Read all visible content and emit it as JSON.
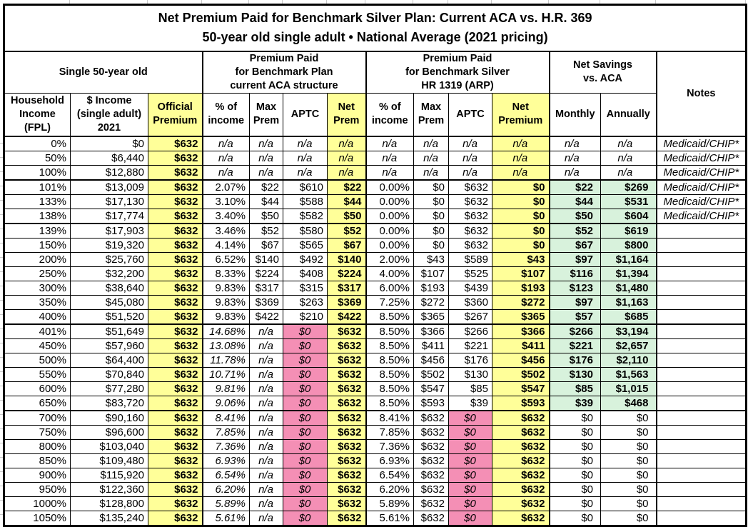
{
  "title": {
    "line1": "Net Premium Paid for Benchmark Silver Plan: Current ACA vs. H.R. 369",
    "line2": "50-year old single adult • National Average (2021 pricing)"
  },
  "groups": {
    "single": "Single 50-year old",
    "aca": "Premium Paid\nfor Benchmark Plan\ncurrent ACA structure",
    "arp": "Premium Paid\nfor Benchmark Silver\nHR 1319 (ARP)",
    "savings": "Net Savings\nvs. ACA",
    "notes": "Notes"
  },
  "columns": [
    "Household\nIncome\n(FPL)",
    "$ Income\n(single adult)\n2021",
    "Official\nPremium",
    "% of\nincome",
    "Max\nPrem",
    "APTC",
    "Net\nPrem",
    "% of\nincome",
    "Max\nPrem",
    "APTC",
    "Net\nPremium",
    "Monthly",
    "Annually"
  ],
  "colors": {
    "highlight_yellow": "#FFFF99",
    "highlight_pink": "#F48FB5",
    "highlight_green": "#D8F2DC"
  },
  "rows": [
    {
      "type": "na",
      "thick_top": false,
      "cells": [
        "0%",
        "$0",
        "$632",
        "n/a",
        "n/a",
        "n/a",
        "n/a",
        "n/a",
        "n/a",
        "n/a",
        "n/a",
        "n/a",
        "n/a",
        "Medicaid/CHIP*"
      ]
    },
    {
      "type": "na",
      "thick_top": false,
      "cells": [
        "50%",
        "$6,440",
        "$632",
        "n/a",
        "n/a",
        "n/a",
        "n/a",
        "n/a",
        "n/a",
        "n/a",
        "n/a",
        "n/a",
        "n/a",
        "Medicaid/CHIP*"
      ]
    },
    {
      "type": "na",
      "thick_top": false,
      "cells": [
        "100%",
        "$12,880",
        "$632",
        "n/a",
        "n/a",
        "n/a",
        "n/a",
        "n/a",
        "n/a",
        "n/a",
        "n/a",
        "n/a",
        "n/a",
        "Medicaid/CHIP*"
      ]
    },
    {
      "type": "subsidy",
      "thick_top": true,
      "cells": [
        "101%",
        "$13,009",
        "$632",
        "2.07%",
        "$22",
        "$610",
        "$22",
        "0.00%",
        "$0",
        "$632",
        "$0",
        "$22",
        "$269",
        "Medicaid/CHIP*"
      ]
    },
    {
      "type": "subsidy",
      "thick_top": false,
      "cells": [
        "133%",
        "$17,130",
        "$632",
        "3.10%",
        "$44",
        "$588",
        "$44",
        "0.00%",
        "$0",
        "$632",
        "$0",
        "$44",
        "$531",
        "Medicaid/CHIP*"
      ]
    },
    {
      "type": "subsidy",
      "thick_top": false,
      "cells": [
        "138%",
        "$17,774",
        "$632",
        "3.40%",
        "$50",
        "$582",
        "$50",
        "0.00%",
        "$0",
        "$632",
        "$0",
        "$50",
        "$604",
        "Medicaid/CHIP*"
      ]
    },
    {
      "type": "subsidy",
      "thick_top": true,
      "cells": [
        "139%",
        "$17,903",
        "$632",
        "3.46%",
        "$52",
        "$580",
        "$52",
        "0.00%",
        "$0",
        "$632",
        "$0",
        "$52",
        "$619",
        ""
      ]
    },
    {
      "type": "subsidy",
      "thick_top": false,
      "cells": [
        "150%",
        "$19,320",
        "$632",
        "4.14%",
        "$67",
        "$565",
        "$67",
        "0.00%",
        "$0",
        "$632",
        "$0",
        "$67",
        "$800",
        ""
      ]
    },
    {
      "type": "subsidy",
      "thick_top": false,
      "cells": [
        "200%",
        "$25,760",
        "$632",
        "6.52%",
        "$140",
        "$492",
        "$140",
        "2.00%",
        "$43",
        "$589",
        "$43",
        "$97",
        "$1,164",
        ""
      ]
    },
    {
      "type": "subsidy",
      "thick_top": false,
      "cells": [
        "250%",
        "$32,200",
        "$632",
        "8.33%",
        "$224",
        "$408",
        "$224",
        "4.00%",
        "$107",
        "$525",
        "$107",
        "$116",
        "$1,394",
        ""
      ]
    },
    {
      "type": "subsidy",
      "thick_top": false,
      "cells": [
        "300%",
        "$38,640",
        "$632",
        "9.83%",
        "$317",
        "$315",
        "$317",
        "6.00%",
        "$193",
        "$439",
        "$193",
        "$123",
        "$1,480",
        ""
      ]
    },
    {
      "type": "subsidy",
      "thick_top": false,
      "cells": [
        "350%",
        "$45,080",
        "$632",
        "9.83%",
        "$369",
        "$263",
        "$369",
        "7.25%",
        "$272",
        "$360",
        "$272",
        "$97",
        "$1,163",
        ""
      ]
    },
    {
      "type": "subsidy",
      "thick_top": false,
      "cells": [
        "400%",
        "$51,520",
        "$632",
        "9.83%",
        "$422",
        "$210",
        "$422",
        "8.50%",
        "$365",
        "$267",
        "$365",
        "$57",
        "$685",
        ""
      ]
    },
    {
      "type": "cliff",
      "thick_top": true,
      "cells": [
        "401%",
        "$51,649",
        "$632",
        "14.68%",
        "n/a",
        "$0",
        "$632",
        "8.50%",
        "$366",
        "$266",
        "$366",
        "$266",
        "$3,194",
        ""
      ]
    },
    {
      "type": "cliff",
      "thick_top": false,
      "cells": [
        "450%",
        "$57,960",
        "$632",
        "13.08%",
        "n/a",
        "$0",
        "$632",
        "8.50%",
        "$411",
        "$221",
        "$411",
        "$221",
        "$2,657",
        ""
      ]
    },
    {
      "type": "cliff",
      "thick_top": false,
      "cells": [
        "500%",
        "$64,400",
        "$632",
        "11.78%",
        "n/a",
        "$0",
        "$632",
        "8.50%",
        "$456",
        "$176",
        "$456",
        "$176",
        "$2,110",
        ""
      ]
    },
    {
      "type": "cliff",
      "thick_top": false,
      "cells": [
        "550%",
        "$70,840",
        "$632",
        "10.71%",
        "n/a",
        "$0",
        "$632",
        "8.50%",
        "$502",
        "$130",
        "$502",
        "$130",
        "$1,563",
        ""
      ]
    },
    {
      "type": "cliff",
      "thick_top": false,
      "cells": [
        "600%",
        "$77,280",
        "$632",
        "9.81%",
        "n/a",
        "$0",
        "$632",
        "8.50%",
        "$547",
        "$85",
        "$547",
        "$85",
        "$1,015",
        ""
      ]
    },
    {
      "type": "cliff",
      "thick_top": false,
      "cells": [
        "650%",
        "$83,720",
        "$632",
        "9.06%",
        "n/a",
        "$0",
        "$632",
        "8.50%",
        "$593",
        "$39",
        "$593",
        "$39",
        "$468",
        ""
      ]
    },
    {
      "type": "zero",
      "thick_top": true,
      "cells": [
        "700%",
        "$90,160",
        "$632",
        "8.41%",
        "n/a",
        "$0",
        "$632",
        "8.41%",
        "$632",
        "$0",
        "$632",
        "$0",
        "$0",
        ""
      ]
    },
    {
      "type": "zero",
      "thick_top": false,
      "cells": [
        "750%",
        "$96,600",
        "$632",
        "7.85%",
        "n/a",
        "$0",
        "$632",
        "7.85%",
        "$632",
        "$0",
        "$632",
        "$0",
        "$0",
        ""
      ]
    },
    {
      "type": "zero",
      "thick_top": false,
      "cells": [
        "800%",
        "$103,040",
        "$632",
        "7.36%",
        "n/a",
        "$0",
        "$632",
        "7.36%",
        "$632",
        "$0",
        "$632",
        "$0",
        "$0",
        ""
      ]
    },
    {
      "type": "zero",
      "thick_top": false,
      "cells": [
        "850%",
        "$109,480",
        "$632",
        "6.93%",
        "n/a",
        "$0",
        "$632",
        "6.93%",
        "$632",
        "$0",
        "$632",
        "$0",
        "$0",
        ""
      ]
    },
    {
      "type": "zero",
      "thick_top": false,
      "cells": [
        "900%",
        "$115,920",
        "$632",
        "6.54%",
        "n/a",
        "$0",
        "$632",
        "6.54%",
        "$632",
        "$0",
        "$632",
        "$0",
        "$0",
        ""
      ]
    },
    {
      "type": "zero",
      "thick_top": false,
      "cells": [
        "950%",
        "$122,360",
        "$632",
        "6.20%",
        "n/a",
        "$0",
        "$632",
        "6.20%",
        "$632",
        "$0",
        "$632",
        "$0",
        "$0",
        ""
      ]
    },
    {
      "type": "zero",
      "thick_top": false,
      "cells": [
        "1000%",
        "$128,800",
        "$632",
        "5.89%",
        "n/a",
        "$0",
        "$632",
        "5.89%",
        "$632",
        "$0",
        "$632",
        "$0",
        "$0",
        ""
      ]
    },
    {
      "type": "zero",
      "thick_top": false,
      "cells": [
        "1050%",
        "$135,240",
        "$632",
        "5.61%",
        "n/a",
        "$0",
        "$632",
        "5.61%",
        "$632",
        "$0",
        "$632",
        "$0",
        "$0",
        ""
      ]
    }
  ]
}
